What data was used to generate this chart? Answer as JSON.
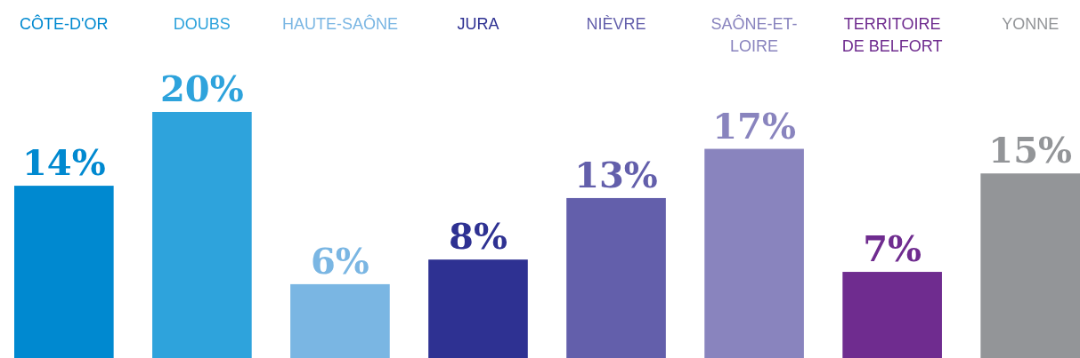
{
  "chart_data": {
    "type": "bar",
    "categories": [
      "CÔTE-D'OR",
      "DOUBS",
      "HAUTE-SAÔNE",
      "JURA",
      "NIÈVRE",
      "SAÔNE-ET-LOIRE",
      "TERRITOIRE DE BELFORT",
      "YONNE"
    ],
    "values": [
      14,
      20,
      6,
      8,
      13,
      17,
      7,
      15
    ],
    "colors": [
      "#0089d0",
      "#2ea3dc",
      "#7ab6e3",
      "#2e3192",
      "#635fab",
      "#8984be",
      "#6f2c8f",
      "#939598"
    ],
    "value_labels": [
      "14%",
      "20%",
      "6%",
      "8%",
      "13%",
      "17%",
      "7%",
      "15%"
    ]
  }
}
